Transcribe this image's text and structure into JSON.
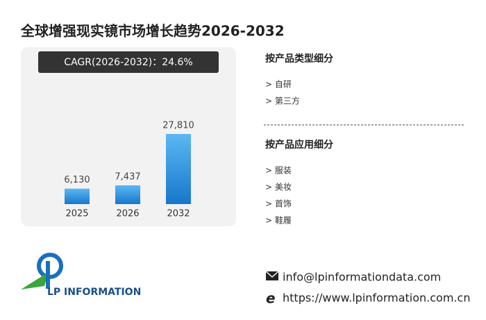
{
  "chart_data": {
    "type": "bar",
    "title": "全球增强现实镜市场增长趋势2026-2032",
    "annotation": "CAGR(2026-2032)：24.6%",
    "categories": [
      "2025",
      "2026",
      "2032"
    ],
    "values": [
      6130,
      7437,
      27810
    ],
    "value_labels": [
      "6,130",
      "7,437",
      "27,810"
    ],
    "color": "#2b8fe0"
  },
  "segments": [
    {
      "title": "按产品类型细分",
      "items": [
        "> 自研",
        "> 第三方"
      ]
    },
    {
      "title": "按产品应用细分",
      "items": [
        "> 服装",
        "> 美妆",
        "> 首饰",
        "> 鞋履"
      ]
    }
  ],
  "logo": "LP INFORMATION",
  "contact": {
    "email": "info@lpinformationdata.com",
    "website": "https://www.lpinformation.com.cn"
  }
}
